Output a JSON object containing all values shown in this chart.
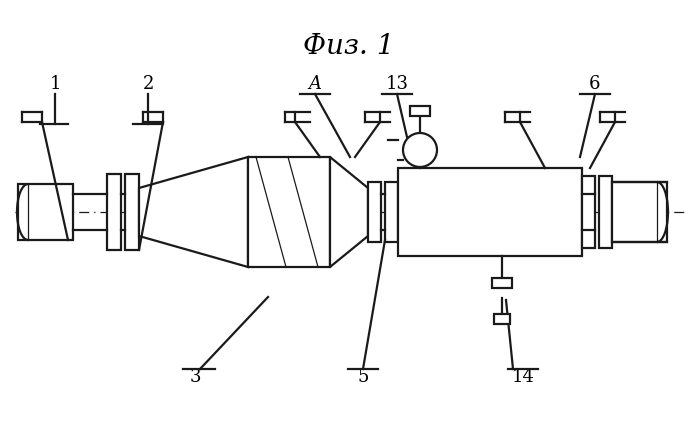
{
  "bg_color": "#ffffff",
  "line_color": "#1a1a1a",
  "lw": 1.6,
  "lw_thin": 0.9,
  "title": "Физ. 1"
}
